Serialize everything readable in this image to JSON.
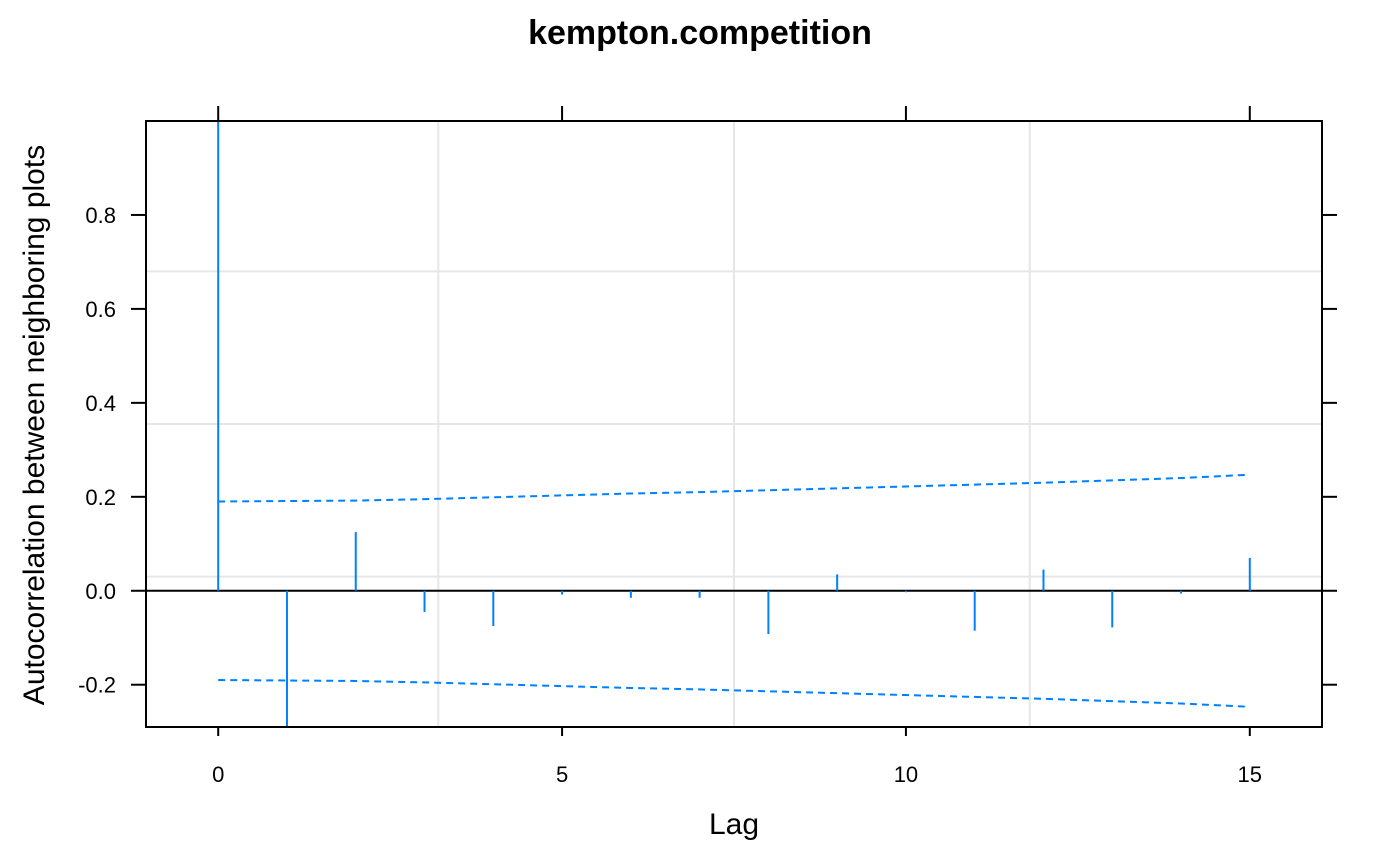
{
  "chart_data": {
    "type": "bar",
    "title": "kempton.competition",
    "xlabel": "Lag",
    "ylabel": "Autocorrelation between neighboring plots",
    "xlim": [
      -1.05,
      16.05
    ],
    "ylim": [
      -0.29,
      1.0
    ],
    "x_ticks": [
      0,
      5,
      10,
      15
    ],
    "x_tick_labels": [
      "0",
      "5",
      "10",
      "15"
    ],
    "y_ticks": [
      -0.2,
      0.0,
      0.2,
      0.4,
      0.6,
      0.8
    ],
    "y_tick_labels": [
      "-0.2",
      "0.0",
      "0.2",
      "0.4",
      "0.6",
      "0.8"
    ],
    "grid": true,
    "grid_x": [
      3.2,
      7.5,
      11.8
    ],
    "grid_y": [
      0.03,
      0.355,
      0.68
    ],
    "lags": [
      0,
      1,
      2,
      3,
      4,
      5,
      6,
      7,
      8,
      9,
      10,
      11,
      12,
      13,
      14,
      15
    ],
    "values": [
      1.0,
      -0.29,
      0.125,
      -0.045,
      -0.075,
      -0.008,
      -0.015,
      -0.015,
      -0.092,
      0.035,
      -0.003,
      -0.085,
      0.045,
      -0.078,
      -0.006,
      0.07
    ],
    "confidence_upper": [
      0.19,
      0.191,
      0.192,
      0.195,
      0.199,
      0.203,
      0.207,
      0.21,
      0.214,
      0.218,
      0.222,
      0.226,
      0.23,
      0.235,
      0.24,
      0.247
    ],
    "confidence_lower": [
      -0.19,
      -0.191,
      -0.192,
      -0.195,
      -0.199,
      -0.203,
      -0.207,
      -0.21,
      -0.214,
      -0.218,
      -0.222,
      -0.226,
      -0.23,
      -0.235,
      -0.24,
      -0.247
    ],
    "series_color": "#0080ff",
    "grid_color": "#e6e6e6",
    "axis_color": "#000000"
  }
}
